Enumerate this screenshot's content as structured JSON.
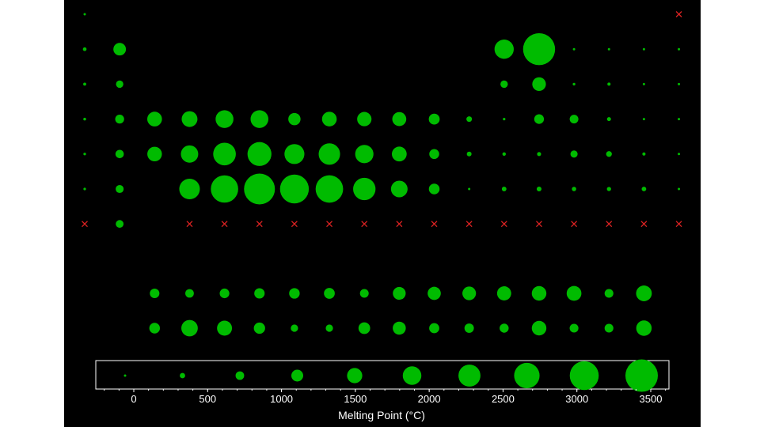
{
  "colors": {
    "background": "#000000",
    "marker": "#00bb00",
    "missing_marker": "#dd2222",
    "legend_box": "#ffffff",
    "axis": "#ffffff"
  },
  "chart_data": {
    "type": "scatter",
    "xlabel": "Melting Point (°C)",
    "xlim": [
      -350,
      3600
    ],
    "xticks": [
      0,
      500,
      1000,
      1500,
      2000,
      2500,
      3000,
      3500
    ],
    "xtick_labels": [
      "0",
      "500",
      "1000",
      "1500",
      "2000",
      "2500",
      "3000",
      "3500"
    ],
    "grid": false,
    "marker_size_encoding": "melting point",
    "missing_marker": "x",
    "columns": 18,
    "periodic_table": {
      "main": [
        {
          "row": 1,
          "cells": [
            {
              "col": 1,
              "mp": -259
            },
            {
              "col": 18,
              "mp": null
            }
          ]
        },
        {
          "row": 2,
          "cells": [
            {
              "col": 1,
              "mp": 181
            },
            {
              "col": 2,
              "mp": 1287
            },
            {
              "col": 13,
              "mp": 2076
            },
            {
              "col": 14,
              "mp": 3550
            },
            {
              "col": 15,
              "mp": -210
            },
            {
              "col": 16,
              "mp": -218
            },
            {
              "col": 17,
              "mp": -220
            },
            {
              "col": 18,
              "mp": -249
            }
          ]
        },
        {
          "row": 3,
          "cells": [
            {
              "col": 1,
              "mp": 98
            },
            {
              "col": 2,
              "mp": 650
            },
            {
              "col": 13,
              "mp": 660
            },
            {
              "col": 14,
              "mp": 1414
            },
            {
              "col": 15,
              "mp": 44
            },
            {
              "col": 16,
              "mp": 115
            },
            {
              "col": 17,
              "mp": -102
            },
            {
              "col": 18,
              "mp": -189
            }
          ]
        },
        {
          "row": 4,
          "cells": [
            {
              "col": 1,
              "mp": 63
            },
            {
              "col": 2,
              "mp": 842
            },
            {
              "col": 3,
              "mp": 1541
            },
            {
              "col": 4,
              "mp": 1668
            },
            {
              "col": 5,
              "mp": 1910
            },
            {
              "col": 6,
              "mp": 1907
            },
            {
              "col": 7,
              "mp": 1246
            },
            {
              "col": 8,
              "mp": 1538
            },
            {
              "col": 9,
              "mp": 1495
            },
            {
              "col": 10,
              "mp": 1455
            },
            {
              "col": 11,
              "mp": 1085
            },
            {
              "col": 12,
              "mp": 420
            },
            {
              "col": 13,
              "mp": 30
            },
            {
              "col": 14,
              "mp": 938
            },
            {
              "col": 15,
              "mp": 817
            },
            {
              "col": 16,
              "mp": 221
            },
            {
              "col": 17,
              "mp": -7
            },
            {
              "col": 18,
              "mp": -157
            }
          ]
        },
        {
          "row": 5,
          "cells": [
            {
              "col": 1,
              "mp": 39
            },
            {
              "col": 2,
              "mp": 777
            },
            {
              "col": 3,
              "mp": 1526
            },
            {
              "col": 4,
              "mp": 1855
            },
            {
              "col": 5,
              "mp": 2477
            },
            {
              "col": 6,
              "mp": 2623
            },
            {
              "col": 7,
              "mp": 2157
            },
            {
              "col": 8,
              "mp": 2334
            },
            {
              "col": 9,
              "mp": 1964
            },
            {
              "col": 10,
              "mp": 1555
            },
            {
              "col": 11,
              "mp": 962
            },
            {
              "col": 12,
              "mp": 321
            },
            {
              "col": 13,
              "mp": 157
            },
            {
              "col": 14,
              "mp": 232
            },
            {
              "col": 15,
              "mp": 631
            },
            {
              "col": 16,
              "mp": 450
            },
            {
              "col": 17,
              "mp": 114
            },
            {
              "col": 18,
              "mp": -112
            }
          ]
        },
        {
          "row": 6,
          "cells": [
            {
              "col": 1,
              "mp": 28
            },
            {
              "col": 2,
              "mp": 727
            },
            {
              "col": 4,
              "mp": 2233
            },
            {
              "col": 5,
              "mp": 3017
            },
            {
              "col": 6,
              "mp": 3422
            },
            {
              "col": 7,
              "mp": 3186
            },
            {
              "col": 8,
              "mp": 3033
            },
            {
              "col": 9,
              "mp": 2446
            },
            {
              "col": 10,
              "mp": 1768
            },
            {
              "col": 11,
              "mp": 1064
            },
            {
              "col": 12,
              "mp": -39
            },
            {
              "col": 13,
              "mp": 304
            },
            {
              "col": 14,
              "mp": 327
            },
            {
              "col": 15,
              "mp": 271
            },
            {
              "col": 16,
              "mp": 254
            },
            {
              "col": 17,
              "mp": 302
            },
            {
              "col": 18,
              "mp": -71
            }
          ]
        },
        {
          "row": 7,
          "cells": [
            {
              "col": 1,
              "mp": null
            },
            {
              "col": 2,
              "mp": 700
            },
            {
              "col": 4,
              "mp": null
            },
            {
              "col": 5,
              "mp": null
            },
            {
              "col": 6,
              "mp": null
            },
            {
              "col": 7,
              "mp": null
            },
            {
              "col": 8,
              "mp": null
            },
            {
              "col": 9,
              "mp": null
            },
            {
              "col": 10,
              "mp": null
            },
            {
              "col": 11,
              "mp": null
            },
            {
              "col": 12,
              "mp": null
            },
            {
              "col": 13,
              "mp": null
            },
            {
              "col": 14,
              "mp": null
            },
            {
              "col": 15,
              "mp": null
            },
            {
              "col": 16,
              "mp": null
            },
            {
              "col": 17,
              "mp": null
            },
            {
              "col": 18,
              "mp": null
            }
          ]
        }
      ],
      "lanthanides": [
        920,
        798,
        931,
        1021,
        1042,
        1072,
        822,
        1313,
        1356,
        1412,
        1474,
        1529,
        1545,
        824,
        1663
      ],
      "actinides": [
        1050,
        1750,
        1572,
        1132,
        644,
        640,
        1176,
        1340,
        986,
        900,
        860,
        1527,
        827,
        827,
        1627
      ]
    },
    "legend_values": [
      0,
      400,
      800,
      1200,
      1600,
      2000,
      2400,
      2800,
      3200,
      3600
    ]
  }
}
